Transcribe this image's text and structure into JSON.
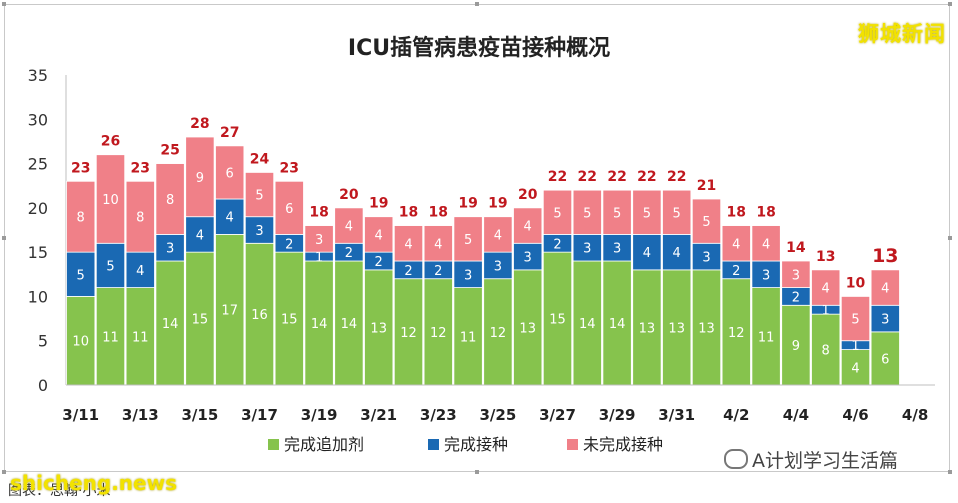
{
  "brand": "狮城新闻",
  "watermark_site": "shicheng.news",
  "watermark_account": "A计划学习生活篇",
  "caption": "图表：思翰·小米",
  "colors": {
    "booster": "#86c34d",
    "vaccinated": "#1a69b3",
    "unvaccinated": "#f08088",
    "total_label": "#c0181e"
  },
  "chart_data": {
    "type": "bar",
    "stacked": true,
    "title": "ICU插管病患疫苗接种概况",
    "xlabel": "",
    "ylabel": "",
    "ylim": [
      0,
      35
    ],
    "yticks": [
      0,
      5,
      10,
      15,
      20,
      25,
      30,
      35
    ],
    "grid": false,
    "legend_position": "bottom",
    "categories": [
      "3/11",
      "3/12",
      "3/13",
      "3/14",
      "3/15",
      "3/16",
      "3/17",
      "3/18",
      "3/19",
      "3/20",
      "3/21",
      "3/22",
      "3/23",
      "3/24",
      "3/25",
      "3/26",
      "3/27",
      "3/28",
      "3/29",
      "3/30",
      "3/31",
      "4/1",
      "4/2",
      "4/3",
      "4/4",
      "4/5",
      "4/6",
      "4/7"
    ],
    "x_tick_labels": [
      "3/11",
      "3/13",
      "3/15",
      "3/17",
      "3/19",
      "3/21",
      "3/23",
      "3/25",
      "3/27",
      "3/29",
      "3/31",
      "4/2",
      "4/4",
      "4/6",
      "4/8"
    ],
    "series": [
      {
        "name": "完成追加剂",
        "color": "#86c34d",
        "values": [
          10,
          11,
          11,
          14,
          15,
          17,
          16,
          15,
          14,
          14,
          13,
          12,
          12,
          11,
          12,
          13,
          15,
          14,
          14,
          13,
          13,
          13,
          12,
          11,
          9,
          8,
          4,
          6
        ]
      },
      {
        "name": "完成接种",
        "color": "#1a69b3",
        "values": [
          5,
          5,
          4,
          3,
          4,
          4,
          3,
          2,
          1,
          2,
          2,
          2,
          2,
          3,
          3,
          3,
          2,
          3,
          3,
          4,
          4,
          3,
          2,
          3,
          2,
          1,
          1,
          3
        ]
      },
      {
        "name": "未完成接种",
        "color": "#f08088",
        "values": [
          8,
          10,
          8,
          8,
          9,
          6,
          5,
          6,
          3,
          4,
          4,
          4,
          4,
          5,
          4,
          4,
          5,
          5,
          5,
          5,
          5,
          5,
          4,
          4,
          3,
          4,
          5,
          4
        ]
      }
    ],
    "totals": [
      23,
      26,
      23,
      25,
      28,
      27,
      24,
      23,
      18,
      20,
      19,
      18,
      18,
      19,
      19,
      20,
      22,
      22,
      22,
      22,
      22,
      21,
      18,
      18,
      14,
      13,
      10,
      13
    ],
    "highlight_last_total": true
  }
}
